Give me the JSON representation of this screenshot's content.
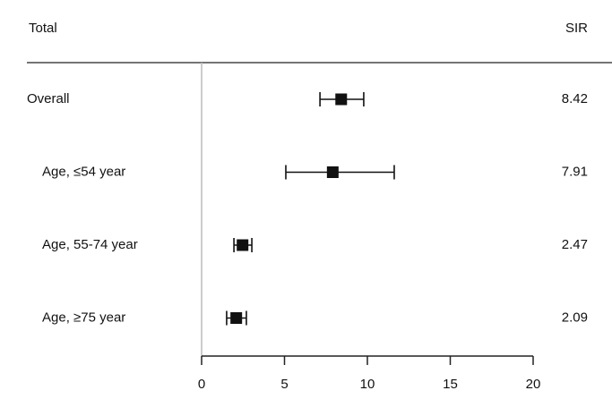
{
  "chart_data": {
    "type": "forest",
    "row_header": "Total",
    "value_header": "SIR",
    "categories": [
      "Overall",
      "Age, ≤54 year",
      "Age, 55-74 year",
      "Age, ≥75 year"
    ],
    "values": [
      8.42,
      7.91,
      2.47,
      2.09
    ],
    "ci_low": [
      7.14,
      5.08,
      1.95,
      1.51
    ],
    "ci_high": [
      9.78,
      11.62,
      3.03,
      2.7
    ],
    "color": "#111111",
    "xlim": [
      0,
      20
    ],
    "xticks": [
      0,
      5,
      10,
      15,
      20
    ]
  }
}
